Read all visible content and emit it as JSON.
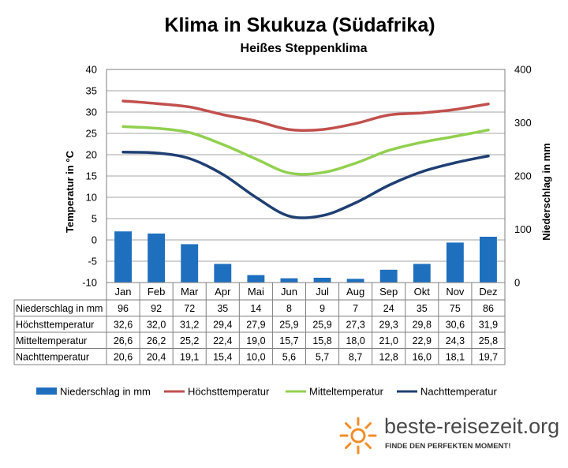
{
  "chart_data": {
    "type": "bar+line",
    "title": "Klima in Skukuza (Südafrika)",
    "subtitle": "Heißes Steppenklima",
    "categories": [
      "Jan",
      "Feb",
      "Mar",
      "Apr",
      "Mai",
      "Jun",
      "Jul",
      "Aug",
      "Sep",
      "Okt",
      "Nov",
      "Dez"
    ],
    "ylabel_left": "Temperatur in °C",
    "ylabel_right": "Niederschlag in mm",
    "ylim_left": [
      -10,
      40
    ],
    "ylim_right": [
      0,
      400
    ],
    "yticks_left": [
      "40",
      "35",
      "30",
      "25",
      "20",
      "15",
      "10",
      "5",
      "0",
      "-5",
      "-10"
    ],
    "yticks_right": [
      "400",
      "300",
      "200",
      "100",
      "0"
    ],
    "grid": true,
    "legend_position": "bottom",
    "bars": {
      "name": "Niederschlag in mm",
      "color": "#1f6fbf",
      "values": [
        96,
        92,
        72,
        35,
        14,
        8,
        9,
        7,
        24,
        35,
        75,
        86
      ]
    },
    "series": [
      {
        "name": "Höchsttemperatur",
        "color": "#c0504d",
        "values": [
          32.6,
          32.0,
          31.2,
          29.4,
          27.9,
          25.9,
          25.9,
          27.3,
          29.3,
          29.8,
          30.6,
          31.9
        ]
      },
      {
        "name": "Mitteltemperatur",
        "color": "#92d050",
        "values": [
          26.6,
          26.2,
          25.2,
          22.4,
          19.0,
          15.7,
          15.8,
          18.0,
          21.0,
          22.9,
          24.3,
          25.8
        ]
      },
      {
        "name": "Nachttemperatur",
        "color": "#1f3f73",
        "values": [
          20.6,
          20.4,
          19.1,
          15.4,
          10.0,
          5.6,
          5.7,
          8.7,
          12.8,
          16.0,
          18.1,
          19.7
        ]
      }
    ],
    "table": [
      {
        "label": "Niederschlag in mm",
        "values": [
          "96",
          "92",
          "72",
          "35",
          "14",
          "8",
          "9",
          "7",
          "24",
          "35",
          "75",
          "86"
        ]
      },
      {
        "label": "Höchsttemperatur",
        "values": [
          "32,6",
          "32,0",
          "31,2",
          "29,4",
          "27,9",
          "25,9",
          "25,9",
          "27,3",
          "29,3",
          "29,8",
          "30,6",
          "31,9"
        ]
      },
      {
        "label": "Mitteltemperatur",
        "values": [
          "26,6",
          "26,2",
          "25,2",
          "22,4",
          "19,0",
          "15,7",
          "15,8",
          "18,0",
          "21,0",
          "22,9",
          "24,3",
          "25,8"
        ]
      },
      {
        "label": "Nachttemperatur",
        "values": [
          "20,6",
          "20,4",
          "19,1",
          "15,4",
          "10,0",
          "5,6",
          "5,7",
          "8,7",
          "12,8",
          "16,0",
          "18,1",
          "19,7"
        ]
      }
    ]
  },
  "branding": {
    "site": "beste-reisezeit.org",
    "tagline": "FINDE DEN PERFEKTEN MOMENT!",
    "logo_icon": "sun-icon",
    "logo_color": "#f28c28"
  }
}
